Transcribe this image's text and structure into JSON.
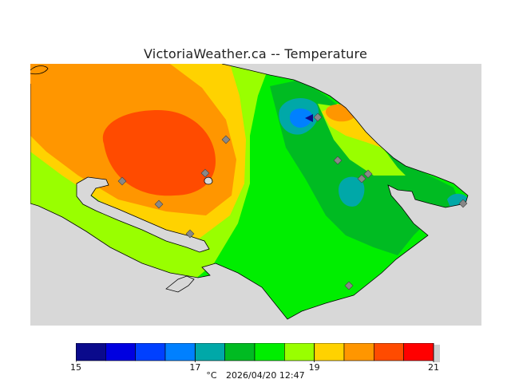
{
  "header": {
    "title": "VictoriaWeather.ca -- Temperature"
  },
  "legend": {
    "colors": [
      "#0a0a8c",
      "#0000e0",
      "#0040ff",
      "#0080ff",
      "#00a8a8",
      "#00bb22",
      "#00ee00",
      "#99ff00",
      "#ffd200",
      "#ff9600",
      "#ff4b00",
      "#ff0000"
    ],
    "min": 15,
    "max": 21,
    "ticks": [
      {
        "value": 15,
        "label": "15"
      },
      {
        "value": 17,
        "label": "17"
      },
      {
        "value": 19,
        "label": "19"
      },
      {
        "value": 21,
        "label": "21"
      }
    ],
    "unit": "°C",
    "timestamp": "2026/04/20 12:47"
  },
  "colors": {
    "no_data": "#d8d8d8",
    "station_marker": "#888888"
  }
}
